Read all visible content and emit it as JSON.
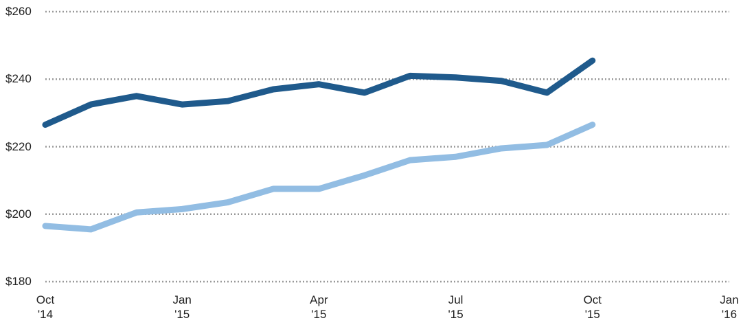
{
  "chart_data": {
    "type": "line",
    "categories": [
      "Oct\n'14",
      null,
      null,
      "Jan\n'15",
      null,
      null,
      "Apr\n'15",
      null,
      null,
      "Jul\n'15",
      null,
      null,
      "Oct\n'15",
      null,
      null,
      "Jan\n'16"
    ],
    "series": [
      {
        "color": "#1f5a8c",
        "values": [
          226.5,
          232.5,
          235,
          232.5,
          233.5,
          237,
          238.5,
          236,
          241,
          240.5,
          239.5,
          236,
          245.5,
          null,
          null,
          null
        ]
      },
      {
        "color": "#92bde3",
        "values": [
          196.5,
          195.5,
          200.5,
          201.5,
          203.5,
          207.5,
          207.5,
          211.5,
          216,
          217,
          219.5,
          220.5,
          226.5,
          null,
          null,
          null
        ]
      }
    ],
    "ylim": [
      180,
      260
    ],
    "yticks": [
      {
        "value": 180,
        "label": "$180"
      },
      {
        "value": 200,
        "label": "$200"
      },
      {
        "value": 220,
        "label": "$220"
      },
      {
        "value": 240,
        "label": "$240"
      },
      {
        "value": 260,
        "label": "$260"
      }
    ],
    "grid": true
  }
}
